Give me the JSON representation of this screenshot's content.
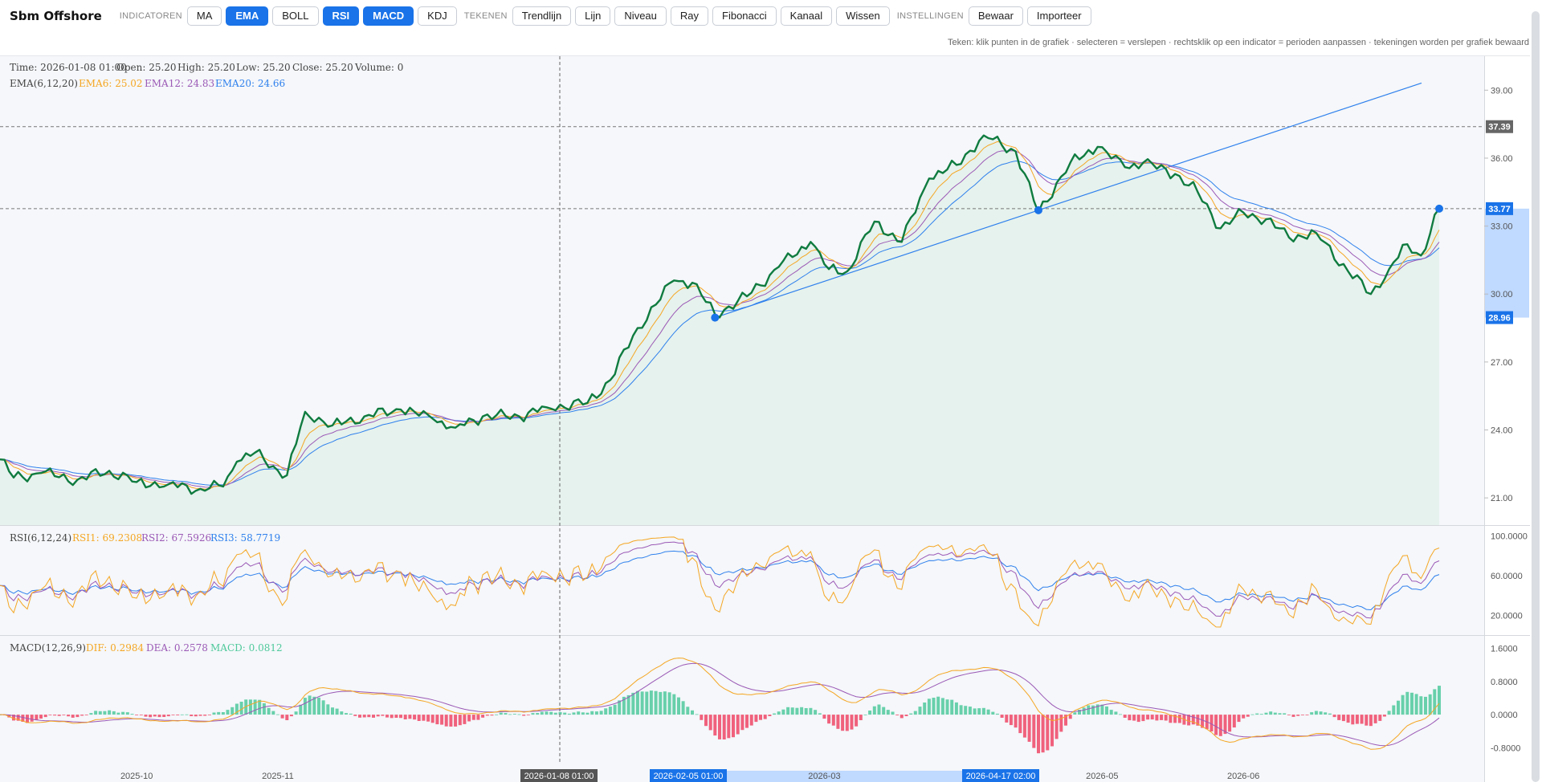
{
  "toolbar": {
    "title": "Sbm Offshore",
    "groups": {
      "indicators": "INDICATOREN",
      "draw": "TEKENEN",
      "settings": "INSTELLINGEN"
    },
    "indicators": [
      {
        "label": "MA",
        "active": false
      },
      {
        "label": "EMA",
        "active": true
      },
      {
        "label": "BOLL",
        "active": false
      },
      {
        "label": "RSI",
        "active": true
      },
      {
        "label": "MACD",
        "active": true
      },
      {
        "label": "KDJ",
        "active": false
      }
    ],
    "draw": [
      "Trendlijn",
      "Lijn",
      "Niveau",
      "Ray",
      "Fibonacci",
      "Kanaal",
      "Wissen"
    ],
    "settings": [
      "Bewaar",
      "Importeer"
    ]
  },
  "hint": "Teken: klik punten in de grafiek · selecteren = verslepen · rechtsklik op een indicator = perioden aanpassen · tekeningen worden per grafiek bewaard",
  "colors": {
    "price": "#0f7b3f",
    "ema6": "#f5a623",
    "ema12": "#9b59b6",
    "ema20": "#2f80ed",
    "accent": "#1a73e8",
    "up": "#4fc99c",
    "down": "#f0506e"
  },
  "ohlc_legend": {
    "time_label": "Time: 2026-01-08 01:00",
    "open_label": "Open: 25.20",
    "high_label": "High: 25.20",
    "low_label": "Low: 25.20",
    "close_label": "Close: 25.20",
    "volume_label": "Volume: 0"
  },
  "ema_legend": {
    "title": "EMA(6,12,20)",
    "ema6": "EMA6: 25.02",
    "ema12": "EMA12: 24.83",
    "ema20": "EMA20: 24.66"
  },
  "rsi_legend": {
    "title": "RSI(6,12,24)",
    "rsi1": "RSI1: 69.2308",
    "rsi2": "RSI2: 67.5926",
    "rsi3": "RSI3: 58.7719"
  },
  "macd_legend": {
    "title": "MACD(12,26,9)",
    "dif": "DIF: 0.2984",
    "dea": "DEA: 0.2578",
    "macd": "MACD: 0.0812"
  },
  "time_badges": {
    "crosshair": "2026-01-08 01:00",
    "mark1": "2026-02-05 01:00",
    "mark2": "2026-04-17 02:00"
  },
  "chart_data": {
    "type": "line",
    "price_axis": {
      "range": [
        19.8,
        40.5
      ],
      "ticks": [
        "39.00",
        "36.00",
        "33.00",
        "30.00",
        "27.00",
        "24.00",
        "21.00"
      ]
    },
    "rsi_axis": {
      "range": [
        0,
        110
      ],
      "ticks": [
        "100.0000",
        "60.0000",
        "20.0000"
      ]
    },
    "macd_axis": {
      "range": [
        -1.2,
        1.9
      ],
      "ticks": [
        "1.6000",
        "0.8000",
        "0.0000",
        "-0.8000"
      ]
    },
    "x_axis_labels": [
      {
        "label": "2025-10",
        "date": "2025-10-01"
      },
      {
        "label": "2025-11",
        "date": "2025-11-01"
      },
      {
        "label": "2026-03",
        "date": "2026-03-01"
      },
      {
        "label": "2026-05",
        "date": "2026-05-01"
      },
      {
        "label": "2026-06",
        "date": "2026-06-01"
      }
    ],
    "date_range": [
      "2025-09-01",
      "2026-07-14"
    ],
    "price_keypoints": [
      [
        "2025-09-01",
        22.7
      ],
      [
        "2025-09-04",
        21.9
      ],
      [
        "2025-09-10",
        22.1
      ],
      [
        "2025-09-18",
        21.8
      ],
      [
        "2025-09-25",
        22.2
      ],
      [
        "2025-10-01",
        21.7
      ],
      [
        "2025-10-08",
        21.6
      ],
      [
        "2025-10-15",
        21.4
      ],
      [
        "2025-10-20",
        21.5
      ],
      [
        "2025-10-23",
        22.6
      ],
      [
        "2025-10-27",
        23.0
      ],
      [
        "2025-10-31",
        22.4
      ],
      [
        "2025-11-03",
        22.0
      ],
      [
        "2025-11-07",
        24.8
      ],
      [
        "2025-11-13",
        24.2
      ],
      [
        "2025-11-20",
        24.6
      ],
      [
        "2025-11-28",
        24.9
      ],
      [
        "2025-12-05",
        24.5
      ],
      [
        "2025-12-10",
        24.1
      ],
      [
        "2025-12-16",
        24.6
      ],
      [
        "2025-12-24",
        24.6
      ],
      [
        "2025-12-30",
        25.0
      ],
      [
        "2026-01-08",
        25.2
      ],
      [
        "2026-01-13",
        26.2
      ],
      [
        "2026-01-19",
        28.5
      ],
      [
        "2026-01-27",
        30.6
      ],
      [
        "2026-01-31",
        30.5
      ],
      [
        "2026-02-05",
        29.1
      ],
      [
        "2026-02-12",
        29.9
      ],
      [
        "2026-02-19",
        31.2
      ],
      [
        "2026-02-26",
        32.3
      ],
      [
        "2026-03-02",
        31.1
      ],
      [
        "2026-03-06",
        31.0
      ],
      [
        "2026-03-12",
        33.2
      ],
      [
        "2026-03-18",
        32.3
      ],
      [
        "2026-03-24",
        35.1
      ],
      [
        "2026-03-30",
        35.7
      ],
      [
        "2026-04-05",
        37.0
      ],
      [
        "2026-04-12",
        36.3
      ],
      [
        "2026-04-17",
        33.6
      ],
      [
        "2026-04-24",
        35.8
      ],
      [
        "2026-04-30",
        36.5
      ],
      [
        "2026-05-06",
        35.6
      ],
      [
        "2026-05-10",
        35.8
      ],
      [
        "2026-05-17",
        35.3
      ],
      [
        "2026-05-22",
        34.5
      ],
      [
        "2026-05-27",
        32.9
      ],
      [
        "2026-06-01",
        33.6
      ],
      [
        "2026-06-06",
        33.3
      ],
      [
        "2026-06-11",
        32.5
      ],
      [
        "2026-06-17",
        32.7
      ],
      [
        "2026-06-24",
        31.0
      ],
      [
        "2026-06-29",
        30.0
      ],
      [
        "2026-07-03",
        31.1
      ],
      [
        "2026-07-07",
        32.2
      ],
      [
        "2026-07-10",
        31.7
      ],
      [
        "2026-07-14",
        33.77
      ]
    ],
    "price_lines": [
      {
        "label": "37.39",
        "value": 37.39
      },
      {
        "label": "33.77",
        "value": 33.77
      }
    ],
    "price_band": {
      "labels": [
        "33.77",
        "28.96"
      ],
      "values": [
        33.77,
        28.96
      ]
    },
    "trendline": {
      "from": [
        "2026-02-05",
        28.96
      ],
      "to": [
        "2026-04-17",
        33.7
      ]
    },
    "series": [
      {
        "name": "EMA6",
        "value": 25.02
      },
      {
        "name": "EMA12",
        "value": 24.83
      },
      {
        "name": "EMA20",
        "value": 24.66
      },
      {
        "name": "RSI1",
        "value": 69.2308
      },
      {
        "name": "RSI2",
        "value": 67.5926
      },
      {
        "name": "RSI3",
        "value": 58.7719
      },
      {
        "name": "DIF",
        "value": 0.2984
      },
      {
        "name": "DEA",
        "value": 0.2578
      },
      {
        "name": "MACD",
        "value": 0.0812
      }
    ]
  }
}
